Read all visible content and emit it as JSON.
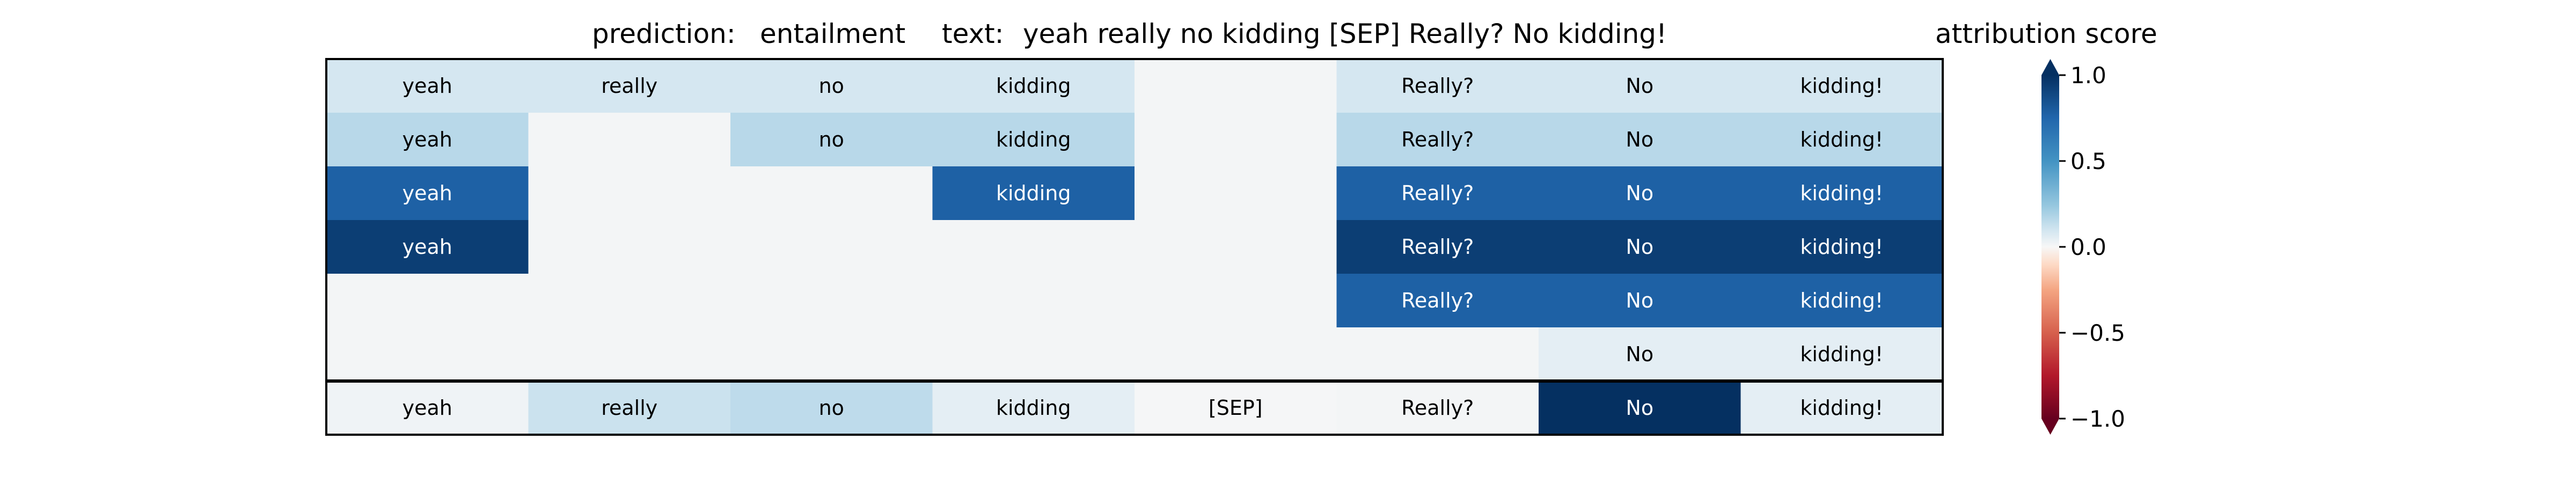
{
  "header": {
    "prediction_prefix": "prediction:",
    "prediction_value": "entailment",
    "text_prefix": "text:",
    "text_value": "yeah really no kidding [SEP] Really? No kidding!"
  },
  "chart_data": {
    "type": "heatmap",
    "title": "",
    "colorbar_label": "attribution score",
    "colorbar_range": [
      -1.0,
      1.0
    ],
    "colorbar_ticks": [
      {
        "value": 1.0,
        "label": "1.0"
      },
      {
        "value": 0.5,
        "label": "0.5"
      },
      {
        "value": 0.0,
        "label": "0.0"
      },
      {
        "value": -0.5,
        "label": "−0.5"
      },
      {
        "value": -1.0,
        "label": "−1.0"
      }
    ],
    "colormap": "RdBu",
    "layer_grid": {
      "columns": 8,
      "rows": [
        [
          {
            "label": "yeah",
            "value": 0.18
          },
          {
            "label": "really",
            "value": 0.18
          },
          {
            "label": "no",
            "value": 0.18
          },
          {
            "label": "kidding",
            "value": 0.18
          },
          {
            "label": "",
            "value": 0.02
          },
          {
            "label": "Really?",
            "value": 0.18
          },
          {
            "label": "No",
            "value": 0.18
          },
          {
            "label": "kidding!",
            "value": 0.18
          }
        ],
        [
          {
            "label": "yeah",
            "value": 0.28
          },
          {
            "label": "",
            "value": 0.02
          },
          {
            "label": "no",
            "value": 0.28
          },
          {
            "label": "kidding",
            "value": 0.28
          },
          {
            "label": "",
            "value": 0.02
          },
          {
            "label": "Really?",
            "value": 0.28
          },
          {
            "label": "No",
            "value": 0.28
          },
          {
            "label": "kidding!",
            "value": 0.28
          }
        ],
        [
          {
            "label": "yeah",
            "value": 0.82
          },
          {
            "label": "",
            "value": 0.02
          },
          {
            "label": "",
            "value": 0.02
          },
          {
            "label": "kidding",
            "value": 0.82
          },
          {
            "label": "",
            "value": 0.02
          },
          {
            "label": "Really?",
            "value": 0.82
          },
          {
            "label": "No",
            "value": 0.82
          },
          {
            "label": "kidding!",
            "value": 0.82
          }
        ],
        [
          {
            "label": "yeah",
            "value": 0.95
          },
          {
            "label": "",
            "value": 0.02
          },
          {
            "label": "",
            "value": 0.02
          },
          {
            "label": "",
            "value": 0.02
          },
          {
            "label": "",
            "value": 0.02
          },
          {
            "label": "Really?",
            "value": 0.95
          },
          {
            "label": "No",
            "value": 0.95
          },
          {
            "label": "kidding!",
            "value": 0.95
          }
        ],
        [
          {
            "label": "",
            "value": 0.02
          },
          {
            "label": "",
            "value": 0.02
          },
          {
            "label": "",
            "value": 0.02
          },
          {
            "label": "",
            "value": 0.02
          },
          {
            "label": "",
            "value": 0.02
          },
          {
            "label": "Really?",
            "value": 0.82
          },
          {
            "label": "No",
            "value": 0.82
          },
          {
            "label": "kidding!",
            "value": 0.82
          }
        ],
        [
          {
            "label": "",
            "value": 0.02
          },
          {
            "label": "",
            "value": 0.02
          },
          {
            "label": "",
            "value": 0.02
          },
          {
            "label": "",
            "value": 0.02
          },
          {
            "label": "",
            "value": 0.02
          },
          {
            "label": "",
            "value": 0.02
          },
          {
            "label": "No",
            "value": 0.1
          },
          {
            "label": "kidding!",
            "value": 0.1
          }
        ]
      ]
    },
    "summary_row": [
      {
        "label": "yeah",
        "value": 0.04
      },
      {
        "label": "really",
        "value": 0.22
      },
      {
        "label": "no",
        "value": 0.26
      },
      {
        "label": "kidding",
        "value": 0.1
      },
      {
        "label": "[SEP]",
        "value": 0.01
      },
      {
        "label": "Really?",
        "value": 0.02
      },
      {
        "label": "No",
        "value": 1.0
      },
      {
        "label": "kidding!",
        "value": 0.1
      }
    ]
  }
}
